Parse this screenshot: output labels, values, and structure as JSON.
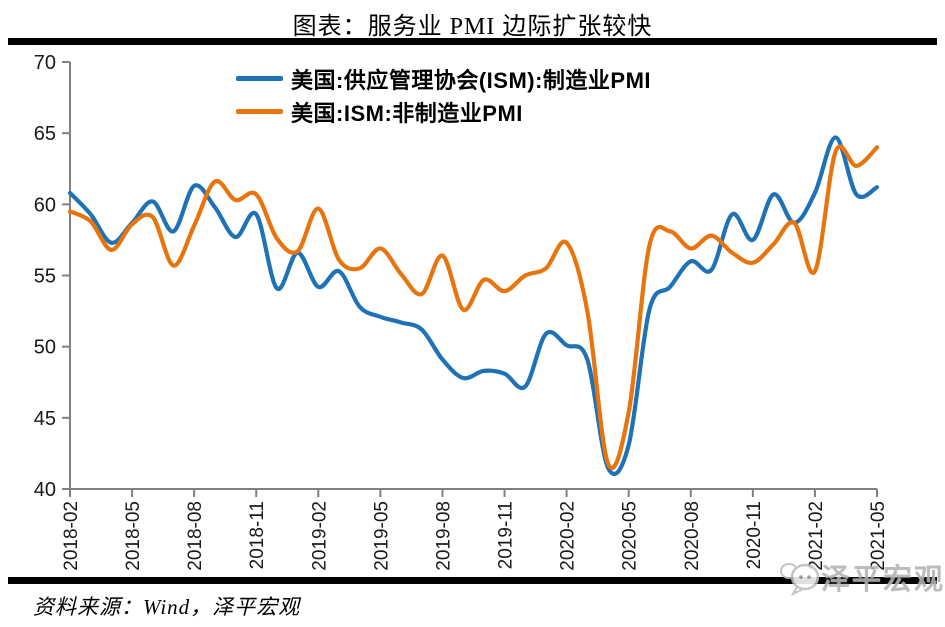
{
  "title": "图表：服务业 PMI 边际扩张较快",
  "source": "资料来源：Wind，泽平宏观",
  "watermark": "泽平宏观",
  "legend": {
    "items": [
      {
        "label": "美国:供应管理协会(ISM):制造业PMI",
        "color": "#1f72b5"
      },
      {
        "label": "美国:ISM:非制造业PMI",
        "color": "#e8740d"
      }
    ]
  },
  "chart_data": {
    "type": "line",
    "title": "图表：服务业 PMI 边际扩张较快",
    "x": [
      "2018-02",
      "2018-03",
      "2018-04",
      "2018-05",
      "2018-06",
      "2018-07",
      "2018-08",
      "2018-09",
      "2018-10",
      "2018-11",
      "2018-12",
      "2019-01",
      "2019-02",
      "2019-03",
      "2019-04",
      "2019-05",
      "2019-06",
      "2019-07",
      "2019-08",
      "2019-09",
      "2019-10",
      "2019-11",
      "2019-12",
      "2020-01",
      "2020-02",
      "2020-03",
      "2020-04",
      "2020-05",
      "2020-06",
      "2020-07",
      "2020-08",
      "2020-09",
      "2020-10",
      "2020-11",
      "2020-12",
      "2021-01",
      "2021-02",
      "2021-03",
      "2021-04",
      "2021-05"
    ],
    "series": [
      {
        "name": "美国:供应管理协会(ISM):制造业PMI",
        "color": "#1f72b5",
        "values": [
          60.8,
          59.3,
          57.3,
          58.7,
          60.2,
          58.1,
          61.3,
          59.8,
          57.7,
          59.3,
          54.1,
          56.6,
          54.2,
          55.3,
          52.8,
          52.1,
          51.7,
          51.2,
          49.1,
          47.8,
          48.3,
          48.1,
          47.2,
          50.9,
          50.1,
          49.1,
          41.5,
          43.1,
          52.6,
          54.2,
          56.0,
          55.4,
          59.3,
          57.5,
          60.7,
          58.7,
          60.8,
          64.7,
          60.7,
          61.2
        ]
      },
      {
        "name": "美国:ISM:非制造业PMI",
        "color": "#e8740d",
        "values": [
          59.5,
          58.8,
          56.8,
          58.6,
          59.1,
          55.7,
          58.5,
          61.6,
          60.3,
          60.7,
          57.6,
          56.7,
          59.7,
          56.1,
          55.5,
          56.9,
          55.1,
          53.7,
          56.4,
          52.6,
          54.7,
          53.9,
          55.0,
          55.5,
          57.3,
          52.5,
          41.8,
          45.4,
          57.1,
          58.1,
          56.9,
          57.8,
          56.6,
          55.9,
          57.2,
          58.7,
          55.3,
          63.7,
          62.7,
          64.0
        ]
      }
    ],
    "ylim": [
      40,
      70
    ],
    "yticks": [
      40,
      45,
      50,
      55,
      60,
      65,
      70
    ],
    "xtick_labels": [
      "2018-02",
      "2018-05",
      "2018-08",
      "2018-11",
      "2019-02",
      "2019-05",
      "2019-08",
      "2019-11",
      "2020-02",
      "2020-05",
      "2020-08",
      "2020-11",
      "2021-02",
      "2021-05"
    ],
    "xtick_every": 3,
    "grid": false,
    "smoothing": true,
    "legend_position": "top-inside",
    "axis_color": "#808080",
    "tick_label_color": "#1a1a1a"
  }
}
